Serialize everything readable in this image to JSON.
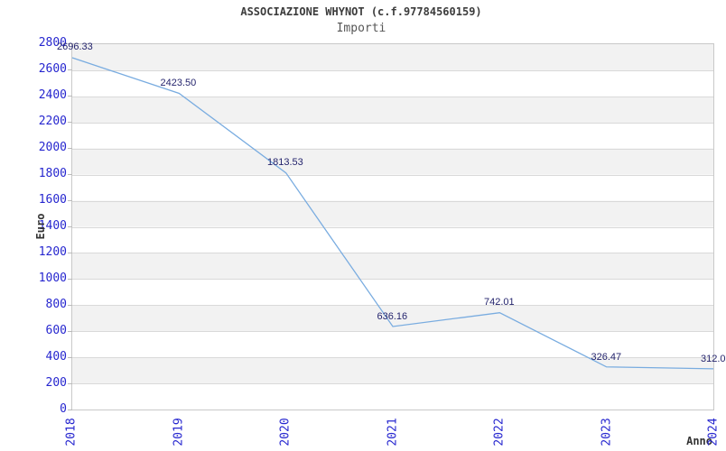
{
  "header": {
    "title": "ASSOCIAZIONE WHYNOT (c.f.97784560159)",
    "subtitle": "Importi"
  },
  "chart_data": {
    "type": "line",
    "title": "ASSOCIAZIONE WHYNOT (c.f.97784560159)",
    "subtitle": "Importi",
    "xlabel": "Anno",
    "ylabel": "Euro",
    "categories": [
      "2018",
      "2019",
      "2020",
      "2021",
      "2022",
      "2023",
      "2024"
    ],
    "series": [
      {
        "name": "Importi",
        "values": [
          2696.33,
          2423.5,
          1813.53,
          636.16,
          742.01,
          326.47,
          312.0
        ],
        "point_labels": [
          "2696.33",
          "2423.50",
          "1813.53",
          "636.16",
          "742.01",
          "326.47",
          "312.0"
        ]
      }
    ],
    "ylim": [
      0,
      2800
    ],
    "ytick_step": 200,
    "ytick_labels": [
      "0",
      "200",
      "400",
      "600",
      "800",
      "1000",
      "1200",
      "1400",
      "1600",
      "1800",
      "2000",
      "2200",
      "2400",
      "2600",
      "2800"
    ],
    "grid": "horizontal",
    "band_fill": "alternating",
    "legend_position": "none",
    "colors": {
      "line": "#79ace0",
      "tick_label": "#2626cf",
      "point_label": "#24246d",
      "band": "#f2f2f2",
      "band_alt": "#ffffff",
      "gridline": "#d9d9d9",
      "tick_mark": "#b9b9b9",
      "plot_border": "#c9c9c9",
      "title": "#3c3c3c",
      "subtitle": "#565656",
      "axis_title": "#333333",
      "background": "#ffffff"
    }
  }
}
